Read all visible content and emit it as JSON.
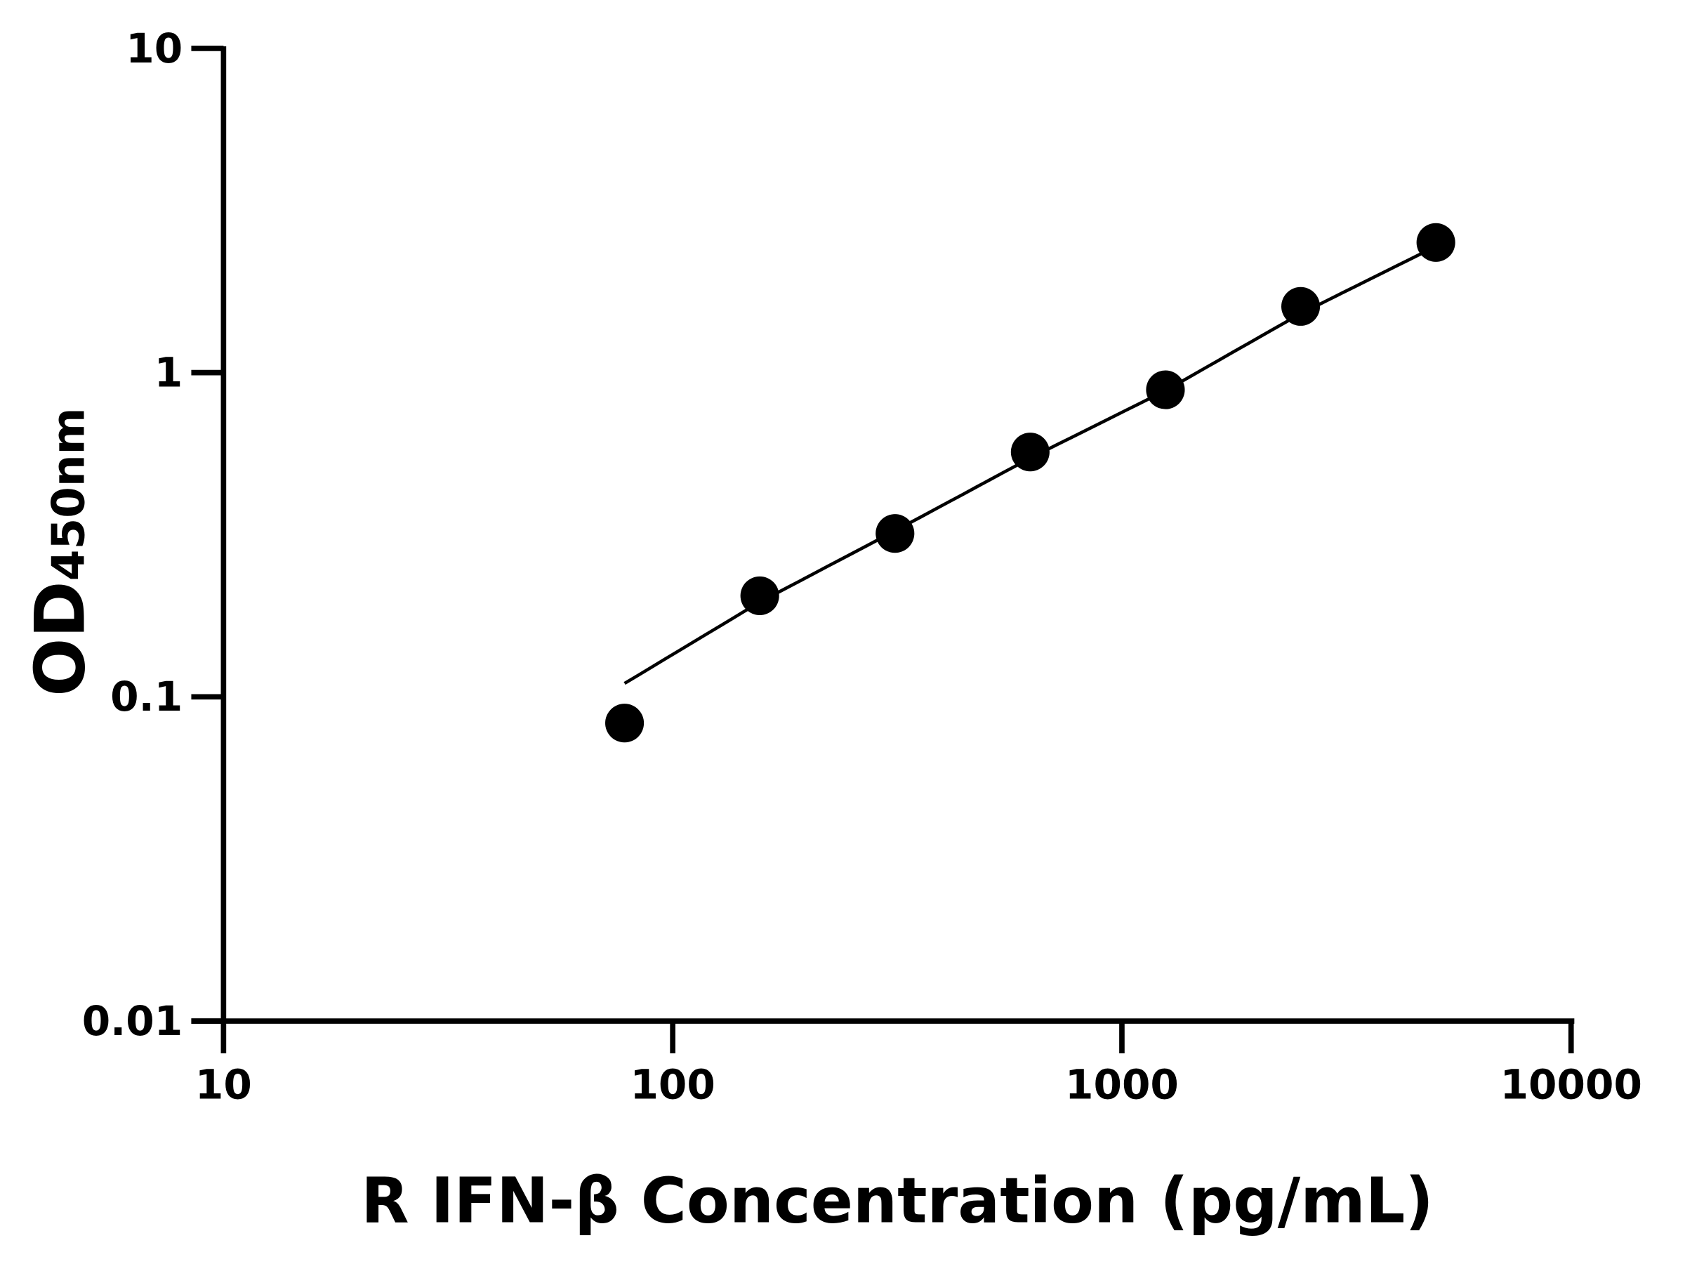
{
  "chart_data": {
    "type": "scatter",
    "title": "",
    "xlabel": "R IFN-β Concentration (pg/mL)",
    "ylabel_main": "OD",
    "ylabel_sub": "450nm",
    "x_scale": "log",
    "y_scale": "log",
    "xlim": [
      10,
      10000
    ],
    "ylim": [
      0.01,
      10
    ],
    "x_ticks": [
      10,
      100,
      1000,
      10000
    ],
    "x_tick_labels": [
      "10",
      "100",
      "1000",
      "10000"
    ],
    "y_ticks": [
      0.01,
      0.1,
      1,
      10
    ],
    "y_tick_labels": [
      "0.01",
      "0.1",
      "1",
      "10"
    ],
    "grid": false,
    "legend": "none",
    "series": [
      {
        "x": [
          78.125,
          156.25,
          312.5,
          625,
          1250,
          2500,
          5000
        ],
        "y": [
          0.083,
          0.205,
          0.319,
          0.569,
          0.885,
          1.6,
          2.52
        ],
        "marker": "circle",
        "color": "#000000"
      }
    ],
    "fit_curve": {
      "x": [
        78.125,
        156.25,
        312.5,
        625,
        1250,
        2500,
        5000
      ],
      "y": [
        0.11,
        0.196,
        0.325,
        0.545,
        0.88,
        1.52,
        2.45
      ],
      "color": "#000000"
    }
  }
}
